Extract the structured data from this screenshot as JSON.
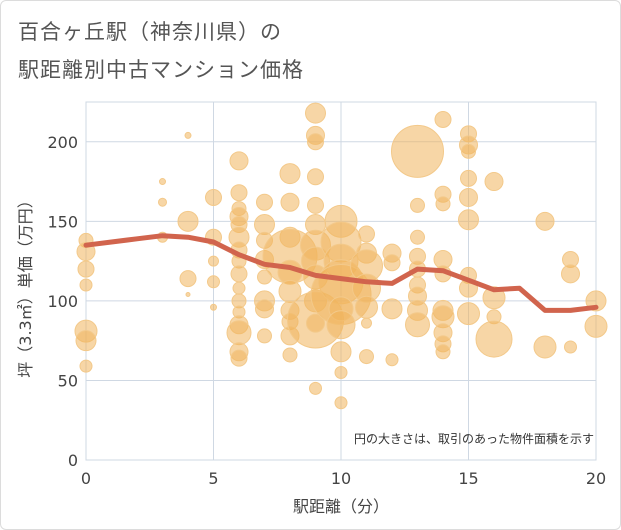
{
  "title_line1": "百合ヶ丘駅（神奈川県）の",
  "title_line2": "駅距離別中古マンション価格",
  "colors": {
    "bubble_fill": "#f0b45c",
    "bubble_fill_opacity": 0.55,
    "bubble_stroke": "#f3c98a",
    "line": "#d1644d",
    "grid": "#cfd8e3",
    "plot_bg": "#ffffff"
  },
  "chart_data": {
    "type": "scatter",
    "title": "百合ヶ丘駅（神奈川県）の駅距離別中古マンション価格",
    "xlabel": "駅距離（分）",
    "ylabel": "坪（3.3㎡）単価（万円）",
    "xlim": [
      0,
      20
    ],
    "ylim": [
      0,
      225
    ],
    "xticks": [
      0,
      5,
      10,
      15,
      20
    ],
    "yticks": [
      0,
      50,
      100,
      150,
      200
    ],
    "grid": true,
    "annotation": "円の大きさは、取引のあった物件面積を示す",
    "bubbles": [
      {
        "x": 0,
        "y": 138,
        "s": 7
      },
      {
        "x": 0,
        "y": 131,
        "s": 9
      },
      {
        "x": 0,
        "y": 120,
        "s": 8
      },
      {
        "x": 0,
        "y": 110,
        "s": 6
      },
      {
        "x": 0,
        "y": 81,
        "s": 11
      },
      {
        "x": 0,
        "y": 75,
        "s": 10
      },
      {
        "x": 0,
        "y": 59,
        "s": 6
      },
      {
        "x": 3,
        "y": 175,
        "s": 3
      },
      {
        "x": 3,
        "y": 162,
        "s": 4
      },
      {
        "x": 3,
        "y": 140,
        "s": 5
      },
      {
        "x": 4,
        "y": 204,
        "s": 3
      },
      {
        "x": 4,
        "y": 150,
        "s": 10
      },
      {
        "x": 4,
        "y": 114,
        "s": 8
      },
      {
        "x": 4,
        "y": 104,
        "s": 2
      },
      {
        "x": 5,
        "y": 165,
        "s": 8
      },
      {
        "x": 5,
        "y": 140,
        "s": 8
      },
      {
        "x": 5,
        "y": 125,
        "s": 5
      },
      {
        "x": 5,
        "y": 112,
        "s": 6
      },
      {
        "x": 5,
        "y": 96,
        "s": 3
      },
      {
        "x": 6,
        "y": 188,
        "s": 9
      },
      {
        "x": 6,
        "y": 168,
        "s": 8
      },
      {
        "x": 6,
        "y": 158,
        "s": 7
      },
      {
        "x": 6,
        "y": 153,
        "s": 9
      },
      {
        "x": 6,
        "y": 148,
        "s": 8
      },
      {
        "x": 6,
        "y": 140,
        "s": 10
      },
      {
        "x": 6,
        "y": 132,
        "s": 8
      },
      {
        "x": 6,
        "y": 125,
        "s": 7
      },
      {
        "x": 6,
        "y": 117,
        "s": 8
      },
      {
        "x": 6,
        "y": 108,
        "s": 6
      },
      {
        "x": 6,
        "y": 100,
        "s": 7
      },
      {
        "x": 6,
        "y": 93,
        "s": 6
      },
      {
        "x": 6,
        "y": 85,
        "s": 9
      },
      {
        "x": 6,
        "y": 80,
        "s": 12
      },
      {
        "x": 6,
        "y": 68,
        "s": 9
      },
      {
        "x": 6,
        "y": 64,
        "s": 8
      },
      {
        "x": 7,
        "y": 162,
        "s": 8
      },
      {
        "x": 7,
        "y": 148,
        "s": 10
      },
      {
        "x": 7,
        "y": 138,
        "s": 8
      },
      {
        "x": 7,
        "y": 126,
        "s": 9
      },
      {
        "x": 7,
        "y": 115,
        "s": 7
      },
      {
        "x": 7,
        "y": 100,
        "s": 10
      },
      {
        "x": 7,
        "y": 95,
        "s": 9
      },
      {
        "x": 7,
        "y": 78,
        "s": 7
      },
      {
        "x": 8,
        "y": 180,
        "s": 10
      },
      {
        "x": 8,
        "y": 162,
        "s": 9
      },
      {
        "x": 8,
        "y": 140,
        "s": 10
      },
      {
        "x": 8,
        "y": 128,
        "s": 27
      },
      {
        "x": 8,
        "y": 118,
        "s": 12
      },
      {
        "x": 8,
        "y": 106,
        "s": 11
      },
      {
        "x": 8,
        "y": 94,
        "s": 9
      },
      {
        "x": 8,
        "y": 87,
        "s": 8
      },
      {
        "x": 8,
        "y": 78,
        "s": 9
      },
      {
        "x": 8,
        "y": 66,
        "s": 7
      },
      {
        "x": 9,
        "y": 218,
        "s": 10
      },
      {
        "x": 9,
        "y": 204,
        "s": 9
      },
      {
        "x": 9,
        "y": 200,
        "s": 8
      },
      {
        "x": 9,
        "y": 178,
        "s": 8
      },
      {
        "x": 9,
        "y": 160,
        "s": 8
      },
      {
        "x": 9,
        "y": 148,
        "s": 10
      },
      {
        "x": 9,
        "y": 135,
        "s": 15
      },
      {
        "x": 9,
        "y": 125,
        "s": 14
      },
      {
        "x": 9,
        "y": 115,
        "s": 12
      },
      {
        "x": 9,
        "y": 100,
        "s": 11
      },
      {
        "x": 9,
        "y": 88,
        "s": 28
      },
      {
        "x": 9,
        "y": 86,
        "s": 9
      },
      {
        "x": 9,
        "y": 45,
        "s": 6
      },
      {
        "x": 10,
        "y": 150,
        "s": 16
      },
      {
        "x": 10,
        "y": 137,
        "s": 20
      },
      {
        "x": 10,
        "y": 125,
        "s": 17
      },
      {
        "x": 10,
        "y": 112,
        "s": 22
      },
      {
        "x": 10,
        "y": 104,
        "s": 30
      },
      {
        "x": 10,
        "y": 95,
        "s": 12
      },
      {
        "x": 10,
        "y": 85,
        "s": 14
      },
      {
        "x": 10,
        "y": 68,
        "s": 10
      },
      {
        "x": 10,
        "y": 55,
        "s": 6
      },
      {
        "x": 10,
        "y": 36,
        "s": 6
      },
      {
        "x": 11,
        "y": 142,
        "s": 8
      },
      {
        "x": 11,
        "y": 130,
        "s": 10
      },
      {
        "x": 11,
        "y": 122,
        "s": 16
      },
      {
        "x": 11,
        "y": 108,
        "s": 14
      },
      {
        "x": 11,
        "y": 96,
        "s": 11
      },
      {
        "x": 11,
        "y": 86,
        "s": 5
      },
      {
        "x": 11,
        "y": 65,
        "s": 7
      },
      {
        "x": 12,
        "y": 130,
        "s": 9
      },
      {
        "x": 12,
        "y": 124,
        "s": 8
      },
      {
        "x": 12,
        "y": 95,
        "s": 10
      },
      {
        "x": 12,
        "y": 63,
        "s": 6
      },
      {
        "x": 13,
        "y": 194,
        "s": 26
      },
      {
        "x": 13,
        "y": 160,
        "s": 7
      },
      {
        "x": 13,
        "y": 140,
        "s": 7
      },
      {
        "x": 13,
        "y": 128,
        "s": 8
      },
      {
        "x": 13,
        "y": 120,
        "s": 8
      },
      {
        "x": 13,
        "y": 110,
        "s": 8
      },
      {
        "x": 13,
        "y": 103,
        "s": 9
      },
      {
        "x": 13,
        "y": 94,
        "s": 10
      },
      {
        "x": 13,
        "y": 85,
        "s": 12
      },
      {
        "x": 14,
        "y": 214,
        "s": 8
      },
      {
        "x": 14,
        "y": 167,
        "s": 8
      },
      {
        "x": 14,
        "y": 161,
        "s": 7
      },
      {
        "x": 14,
        "y": 126,
        "s": 9
      },
      {
        "x": 14,
        "y": 117,
        "s": 8
      },
      {
        "x": 14,
        "y": 94,
        "s": 10
      },
      {
        "x": 14,
        "y": 90,
        "s": 11
      },
      {
        "x": 14,
        "y": 80,
        "s": 9
      },
      {
        "x": 14,
        "y": 73,
        "s": 8
      },
      {
        "x": 14,
        "y": 68,
        "s": 7
      },
      {
        "x": 15,
        "y": 205,
        "s": 8
      },
      {
        "x": 15,
        "y": 198,
        "s": 9
      },
      {
        "x": 15,
        "y": 194,
        "s": 7
      },
      {
        "x": 15,
        "y": 177,
        "s": 8
      },
      {
        "x": 15,
        "y": 165,
        "s": 9
      },
      {
        "x": 15,
        "y": 151,
        "s": 10
      },
      {
        "x": 15,
        "y": 116,
        "s": 8
      },
      {
        "x": 15,
        "y": 108,
        "s": 9
      },
      {
        "x": 15,
        "y": 92,
        "s": 11
      },
      {
        "x": 16,
        "y": 175,
        "s": 9
      },
      {
        "x": 16,
        "y": 102,
        "s": 11
      },
      {
        "x": 16,
        "y": 90,
        "s": 7
      },
      {
        "x": 16,
        "y": 76,
        "s": 18
      },
      {
        "x": 18,
        "y": 150,
        "s": 9
      },
      {
        "x": 18,
        "y": 71,
        "s": 11
      },
      {
        "x": 19,
        "y": 126,
        "s": 8
      },
      {
        "x": 19,
        "y": 117,
        "s": 9
      },
      {
        "x": 19,
        "y": 71,
        "s": 6
      },
      {
        "x": 20,
        "y": 100,
        "s": 10
      },
      {
        "x": 20,
        "y": 84,
        "s": 11
      }
    ],
    "series": [
      {
        "type": "line",
        "x": [
          0,
          1,
          2,
          3,
          4,
          5,
          6,
          7,
          8,
          9,
          10,
          11,
          12,
          13,
          14,
          15,
          16,
          17,
          18,
          19,
          20
        ],
        "y": [
          135,
          137,
          139,
          141,
          140,
          137,
          129,
          123,
          121,
          116,
          114,
          112,
          111,
          120,
          119,
          113,
          107,
          108,
          94,
          94,
          96
        ]
      }
    ]
  }
}
